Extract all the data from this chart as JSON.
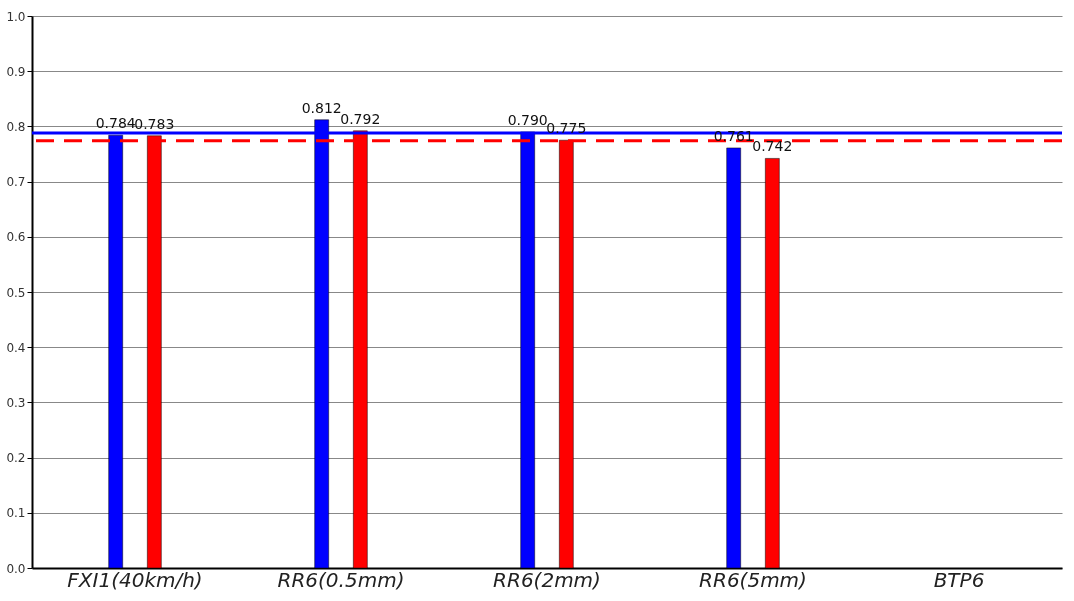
{
  "chart_data": {
    "type": "bar",
    "categories": [
      "FXI1(40km/h)",
      "RR6(0.5mm)",
      "RR6(2mm)",
      "RR6(5mm)",
      "BTP6"
    ],
    "series": [
      {
        "color": "#0000ff",
        "values": [
          0.784,
          0.812,
          0.79,
          0.761,
          null
        ],
        "value_labels": [
          "0.784",
          "0.812",
          "0.790",
          "0.761",
          null
        ]
      },
      {
        "color": "#ff0000",
        "values": [
          0.783,
          0.792,
          0.775,
          0.742,
          null
        ],
        "value_labels": [
          "0.783",
          "0.792",
          "0.775",
          "0.742",
          null
        ]
      }
    ],
    "ylim": [
      0,
      1
    ],
    "yticks": [
      {
        "value": 0,
        "label": "0.0"
      },
      0.1,
      0.2,
      0.3,
      0.4,
      0.5,
      0.6,
      0.7,
      0.8,
      0.9,
      {
        "value": 1,
        "label": "1.0"
      }
    ],
    "grid": "y",
    "legend": false,
    "ref_lines": [
      {
        "axis": "y",
        "value": 0.788,
        "color": "#0000ff",
        "line_style": "solid"
      },
      {
        "axis": "y",
        "value": 0.774,
        "color": "#ff0000",
        "line_style": "dashed"
      }
    ]
  }
}
